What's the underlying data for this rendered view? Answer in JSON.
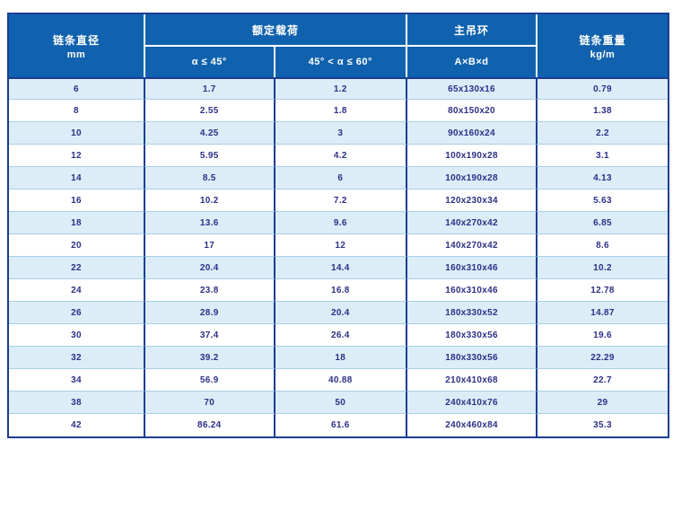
{
  "table": {
    "header": {
      "diameter": {
        "title": "链条直径",
        "unit": "mm"
      },
      "load": {
        "title": "额定载荷",
        "sub_a": "α ≤ 45°",
        "sub_b": "45° < α ≤ 60°"
      },
      "ring": {
        "title": "主吊环",
        "sub": "A×B×d"
      },
      "weight": {
        "title": "链条重量",
        "unit": "kg/m"
      }
    },
    "column_keys": [
      "diameter",
      "load_a",
      "load_b",
      "ring",
      "weight"
    ],
    "rows": [
      {
        "diameter": "6",
        "load_a": "1.7",
        "load_b": "1.2",
        "ring": "65x130x16",
        "weight": "0.79"
      },
      {
        "diameter": "8",
        "load_a": "2.55",
        "load_b": "1.8",
        "ring": "80x150x20",
        "weight": "1.38"
      },
      {
        "diameter": "10",
        "load_a": "4.25",
        "load_b": "3",
        "ring": "90x160x24",
        "weight": "2.2"
      },
      {
        "diameter": "12",
        "load_a": "5.95",
        "load_b": "4.2",
        "ring": "100x190x28",
        "weight": "3.1"
      },
      {
        "diameter": "14",
        "load_a": "8.5",
        "load_b": "6",
        "ring": "100x190x28",
        "weight": "4.13"
      },
      {
        "diameter": "16",
        "load_a": "10.2",
        "load_b": "7.2",
        "ring": "120x230x34",
        "weight": "5.63"
      },
      {
        "diameter": "18",
        "load_a": "13.6",
        "load_b": "9.6",
        "ring": "140x270x42",
        "weight": "6.85"
      },
      {
        "diameter": "20",
        "load_a": "17",
        "load_b": "12",
        "ring": "140x270x42",
        "weight": "8.6"
      },
      {
        "diameter": "22",
        "load_a": "20.4",
        "load_b": "14.4",
        "ring": "160x310x46",
        "weight": "10.2"
      },
      {
        "diameter": "24",
        "load_a": "23.8",
        "load_b": "16.8",
        "ring": "160x310x46",
        "weight": "12.78"
      },
      {
        "diameter": "26",
        "load_a": "28.9",
        "load_b": "20.4",
        "ring": "180x330x52",
        "weight": "14.87"
      },
      {
        "diameter": "30",
        "load_a": "37.4",
        "load_b": "26.4",
        "ring": "180x330x56",
        "weight": "19.6"
      },
      {
        "diameter": "32",
        "load_a": "39.2",
        "load_b": "18",
        "ring": "180x330x56",
        "weight": "22.29"
      },
      {
        "diameter": "34",
        "load_a": "56.9",
        "load_b": "40.88",
        "ring": "210x410x68",
        "weight": "22.7"
      },
      {
        "diameter": "38",
        "load_a": "70",
        "load_b": "50",
        "ring": "240x410x76",
        "weight": "29"
      },
      {
        "diameter": "42",
        "load_a": "86.24",
        "load_b": "61.6",
        "ring": "240x460x84",
        "weight": "35.3"
      }
    ]
  },
  "colors": {
    "header_bg": "#1062ae",
    "header_text": "#ffffff",
    "row_alt_bg": "#dcedf8",
    "row_bg": "#ffffff",
    "outer_border": "#1b3e94",
    "row_border": "#a9cfe5",
    "cell_text": "#2d2f86"
  }
}
